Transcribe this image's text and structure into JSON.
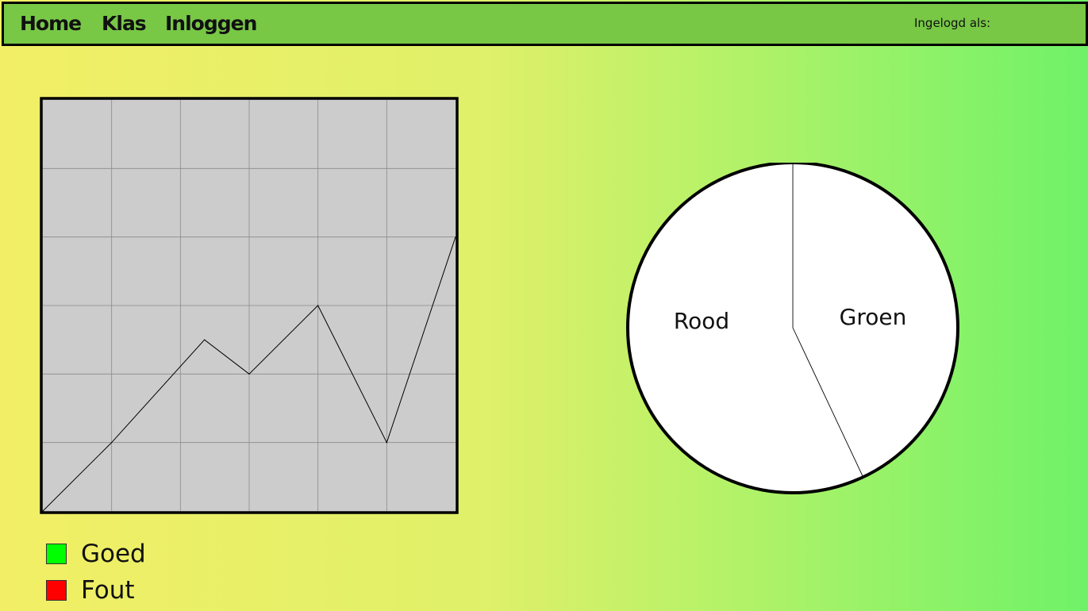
{
  "nav": {
    "items": [
      {
        "label": "Home"
      },
      {
        "label": "Klas"
      },
      {
        "label": "Inloggen"
      }
    ],
    "login_label": "Ingelogd als:"
  },
  "legend": [
    {
      "label": "Goed",
      "color": "#00ff00"
    },
    {
      "label": "Fout",
      "color": "#ff0000"
    }
  ],
  "chart_data": [
    {
      "type": "line",
      "x": [
        0,
        1,
        2.35,
        3,
        4,
        5,
        6
      ],
      "y": [
        0,
        1,
        2.5,
        2,
        3,
        1,
        4
      ],
      "xlim": [
        0,
        6
      ],
      "ylim": [
        0,
        6
      ],
      "grid": true,
      "colors": {
        "background": "#cccccc",
        "line": "#000000",
        "grid": "#8a8a8a"
      }
    },
    {
      "type": "pie",
      "labels": [
        "Groen",
        "Rood"
      ],
      "values": [
        43,
        57
      ],
      "colors": {
        "fill": "#ffffff",
        "border": "#000000"
      }
    }
  ]
}
